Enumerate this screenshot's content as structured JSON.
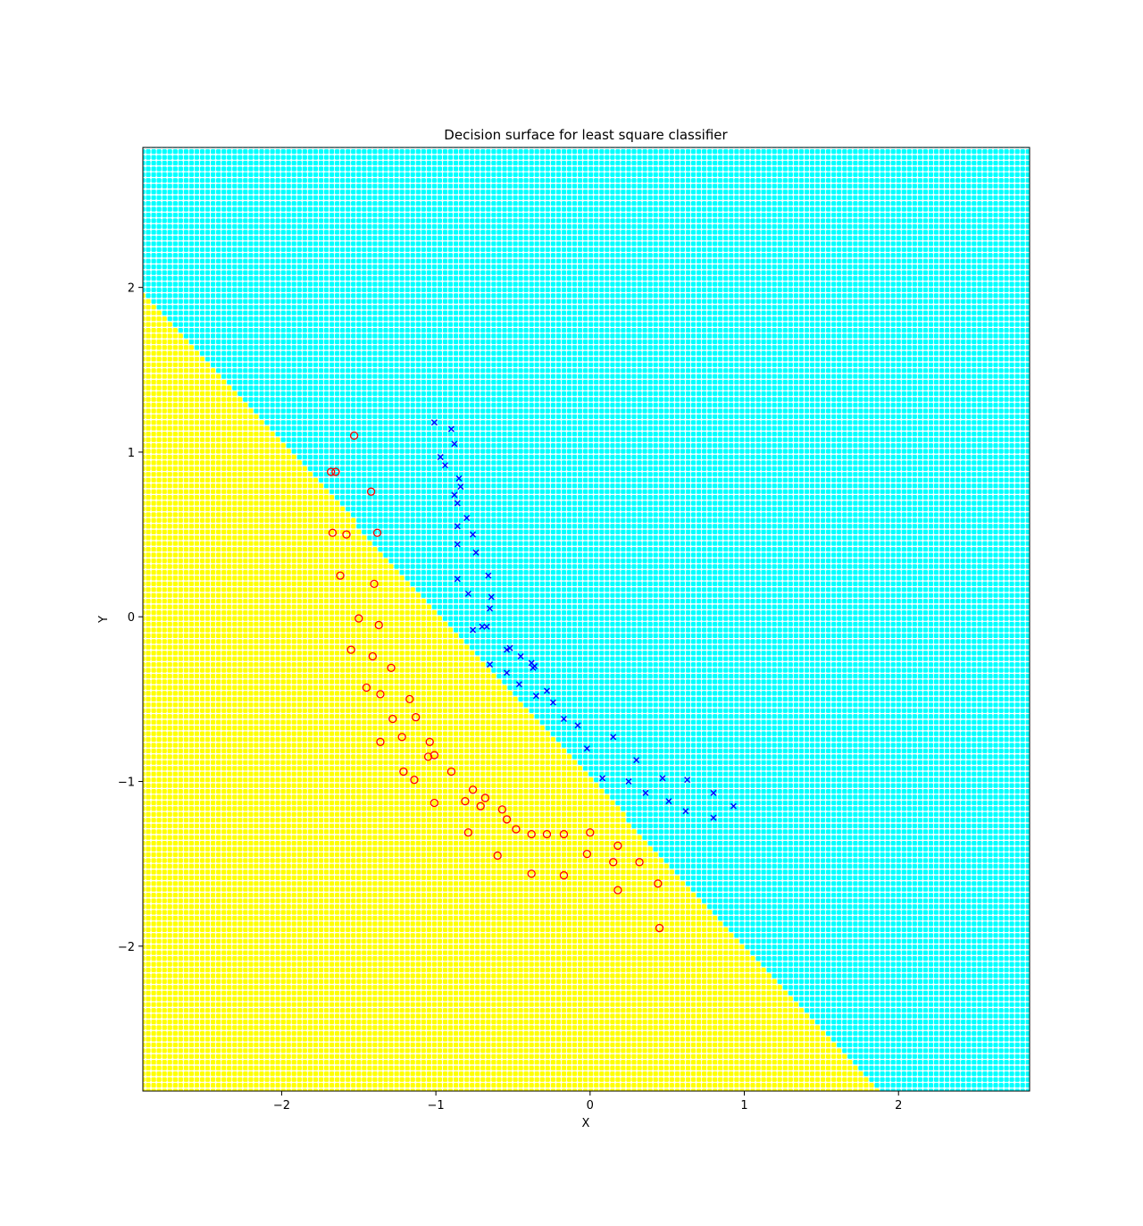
{
  "chart_data": {
    "type": "scatter",
    "title": "Decision surface for least square classifier",
    "xlabel": "X",
    "ylabel": "Y",
    "xlim": [
      -2.9,
      2.85
    ],
    "ylim": [
      -2.88,
      2.85
    ],
    "xticks": [
      -2,
      -1,
      0,
      1,
      2
    ],
    "yticks": [
      -2,
      -1,
      0,
      1,
      2
    ],
    "xtick_labels": [
      "−2",
      "−1",
      "0",
      "1",
      "2"
    ],
    "ytick_labels": [
      "−2",
      "−1",
      "0",
      "1",
      "2"
    ],
    "grid": false,
    "background": {
      "type": "decision-surface",
      "boundary": {
        "slope": -1.02,
        "intercept": -0.98
      },
      "above_color": "#00ffff",
      "below_color": "#ffff00",
      "grid_step": 0.035
    },
    "series": [
      {
        "marker": "circle-open",
        "color": "#ff0000",
        "points": [
          [
            -1.53,
            1.1
          ],
          [
            -1.68,
            0.88
          ],
          [
            -1.65,
            0.88
          ],
          [
            -1.42,
            0.76
          ],
          [
            -1.67,
            0.51
          ],
          [
            -1.58,
            0.5
          ],
          [
            -1.38,
            0.51
          ],
          [
            -1.62,
            0.25
          ],
          [
            -1.4,
            0.2
          ],
          [
            -1.5,
            -0.01
          ],
          [
            -1.37,
            -0.05
          ],
          [
            -1.55,
            -0.2
          ],
          [
            -1.41,
            -0.24
          ],
          [
            -1.29,
            -0.31
          ],
          [
            -1.45,
            -0.43
          ],
          [
            -1.36,
            -0.47
          ],
          [
            -1.17,
            -0.5
          ],
          [
            -1.28,
            -0.62
          ],
          [
            -1.13,
            -0.61
          ],
          [
            -1.22,
            -0.73
          ],
          [
            -1.36,
            -0.76
          ],
          [
            -1.04,
            -0.76
          ],
          [
            -1.01,
            -0.84
          ],
          [
            -1.05,
            -0.85
          ],
          [
            -1.21,
            -0.94
          ],
          [
            -0.9,
            -0.94
          ],
          [
            -1.14,
            -0.99
          ],
          [
            -1.01,
            -1.13
          ],
          [
            -0.76,
            -1.05
          ],
          [
            -0.68,
            -1.1
          ],
          [
            -0.81,
            -1.12
          ],
          [
            -0.71,
            -1.15
          ],
          [
            -0.57,
            -1.17
          ],
          [
            -0.54,
            -1.23
          ],
          [
            -0.48,
            -1.29
          ],
          [
            -0.79,
            -1.31
          ],
          [
            -0.38,
            -1.32
          ],
          [
            -0.28,
            -1.32
          ],
          [
            -0.17,
            -1.32
          ],
          [
            0.0,
            -1.31
          ],
          [
            0.18,
            -1.39
          ],
          [
            -0.6,
            -1.45
          ],
          [
            -0.02,
            -1.44
          ],
          [
            0.15,
            -1.49
          ],
          [
            0.32,
            -1.49
          ],
          [
            -0.38,
            -1.56
          ],
          [
            -0.17,
            -1.57
          ],
          [
            0.44,
            -1.62
          ],
          [
            0.18,
            -1.66
          ],
          [
            0.45,
            -1.89
          ]
        ]
      },
      {
        "marker": "x",
        "color": "#0000ff",
        "points": [
          [
            -1.01,
            1.18
          ],
          [
            -0.9,
            1.14
          ],
          [
            -0.88,
            1.05
          ],
          [
            -0.97,
            0.97
          ],
          [
            -0.94,
            0.92
          ],
          [
            -0.85,
            0.84
          ],
          [
            -0.84,
            0.79
          ],
          [
            -0.88,
            0.74
          ],
          [
            -0.86,
            0.69
          ],
          [
            -0.8,
            0.6
          ],
          [
            -0.86,
            0.55
          ],
          [
            -0.76,
            0.5
          ],
          [
            -0.86,
            0.44
          ],
          [
            -0.74,
            0.39
          ],
          [
            -0.66,
            0.25
          ],
          [
            -0.86,
            0.23
          ],
          [
            -0.64,
            0.12
          ],
          [
            -0.79,
            0.14
          ],
          [
            -0.65,
            0.05
          ],
          [
            -0.7,
            -0.06
          ],
          [
            -0.67,
            -0.06
          ],
          [
            -0.76,
            -0.08
          ],
          [
            -0.54,
            -0.2
          ],
          [
            -0.52,
            -0.19
          ],
          [
            -0.45,
            -0.24
          ],
          [
            -0.38,
            -0.28
          ],
          [
            -0.37,
            -0.31
          ],
          [
            -0.36,
            -0.3
          ],
          [
            -0.54,
            -0.34
          ],
          [
            -0.65,
            -0.29
          ],
          [
            -0.46,
            -0.41
          ],
          [
            -0.35,
            -0.48
          ],
          [
            -0.28,
            -0.45
          ],
          [
            -0.24,
            -0.52
          ],
          [
            -0.17,
            -0.62
          ],
          [
            -0.08,
            -0.66
          ],
          [
            0.15,
            -0.73
          ],
          [
            -0.02,
            -0.8
          ],
          [
            0.3,
            -0.87
          ],
          [
            0.08,
            -0.98
          ],
          [
            0.25,
            -1.0
          ],
          [
            0.47,
            -0.98
          ],
          [
            0.63,
            -0.99
          ],
          [
            0.36,
            -1.07
          ],
          [
            0.8,
            -1.07
          ],
          [
            0.51,
            -1.12
          ],
          [
            0.93,
            -1.15
          ],
          [
            0.62,
            -1.18
          ],
          [
            0.8,
            -1.22
          ]
        ]
      }
    ]
  }
}
